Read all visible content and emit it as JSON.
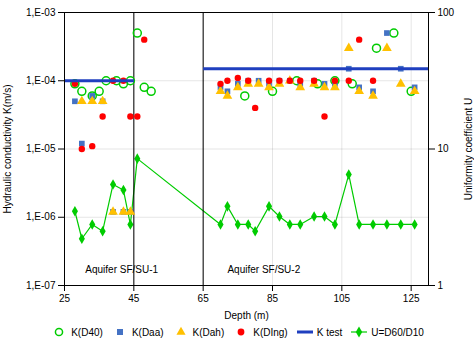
{
  "chart_data": {
    "type": "scatter",
    "xlabel": "Depth (m)",
    "ylabel": "Hydraulic conductivity K(m/s)",
    "y2label": "Uniformity coefficient U",
    "log": "y",
    "grid": true,
    "legend": "bottom",
    "xlim": [
      25,
      130
    ],
    "xticks": [
      25,
      45,
      65,
      85,
      105,
      125
    ],
    "ylim": [
      1e-07,
      0.001
    ],
    "yticks": [
      {
        "value": 1e-07,
        "label": "1,E-07"
      },
      {
        "value": 1e-06,
        "label": "1,E-06"
      },
      {
        "value": 1e-05,
        "label": "1,E-05"
      },
      {
        "value": 0.0001,
        "label": "1,E-04"
      },
      {
        "value": 0.001,
        "label": "1,E-03"
      }
    ],
    "y2lim": [
      1,
      100
    ],
    "y2ticks": [
      1,
      10,
      100
    ],
    "vlines": [
      45,
      65
    ],
    "annotations": [
      {
        "text": "Aquifer SF/SU-1",
        "x": 31,
        "y": 1.5e-07
      },
      {
        "text": "Aquifer SF/SU-2",
        "x": 72,
        "y": 1.5e-07
      }
    ],
    "series": [
      {
        "name": "K(D40)",
        "type": "scatter",
        "marker": "circle-open",
        "color": "#00CC00",
        "x": [
          28,
          30,
          33,
          35,
          37,
          40,
          42,
          44,
          46,
          48,
          50,
          77,
          85,
          92,
          98,
          103,
          108,
          115,
          120,
          125
        ],
        "values": [
          9e-05,
          7e-05,
          6e-05,
          7e-05,
          0.0001,
          0.0001,
          9e-05,
          0.0001,
          0.0005,
          8e-05,
          7e-05,
          6e-05,
          7e-05,
          0.0001,
          9e-05,
          0.0001,
          9e-05,
          0.0003,
          0.0005,
          7e-05
        ]
      },
      {
        "name": "K(Daa)",
        "type": "scatter",
        "marker": "square",
        "color": "#4472C4",
        "x": [
          28,
          30,
          33,
          36,
          39,
          42,
          44,
          70,
          72,
          75,
          78,
          81,
          84,
          87,
          90,
          93,
          97,
          100,
          103,
          107,
          110,
          114,
          118,
          122,
          126
        ],
        "values": [
          5e-05,
          1.2e-05,
          6e-05,
          5e-05,
          1.2e-06,
          1.2e-06,
          1.2e-06,
          8e-05,
          7e-05,
          9e-05,
          0.0001,
          0.0001,
          9e-05,
          0.0001,
          0.0001,
          9e-05,
          0.0001,
          9e-05,
          9e-05,
          0.00015,
          8e-05,
          7e-05,
          0.0005,
          0.00015,
          8e-05
        ]
      },
      {
        "name": "K(Dah)",
        "type": "scatter",
        "marker": "triangle",
        "color": "#FFC000",
        "x": [
          30,
          33,
          36,
          39,
          42,
          44,
          70,
          72,
          75,
          78,
          81,
          84,
          87,
          90,
          93,
          97,
          100,
          103,
          107,
          110,
          114,
          118,
          122,
          126
        ],
        "values": [
          5e-05,
          5e-05,
          5e-05,
          1.2e-06,
          1.2e-06,
          1.2e-06,
          7e-05,
          6e-05,
          8e-05,
          9e-05,
          9e-05,
          8e-05,
          9e-05,
          0.0001,
          8e-05,
          9e-05,
          8e-05,
          8e-05,
          0.0003,
          7e-05,
          6e-05,
          0.0003,
          9e-05,
          7e-05
        ]
      },
      {
        "name": "K(DIng)",
        "type": "scatter",
        "marker": "circle",
        "color": "#FF0000",
        "x": [
          28,
          30,
          33,
          36,
          39,
          42,
          44,
          46,
          48,
          70,
          72,
          75,
          78,
          80,
          84,
          87,
          90,
          93,
          97,
          100,
          103,
          107,
          110,
          114
        ],
        "values": [
          9e-05,
          1e-05,
          1.1e-05,
          3e-05,
          0.0001,
          0.0001,
          3e-05,
          3e-05,
          0.0004,
          9e-05,
          0.0001,
          0.00011,
          0.0001,
          4e-05,
          0.0001,
          0.0001,
          0.0001,
          0.0001,
          0.0001,
          3e-05,
          0.0001,
          0.0001,
          0.0004,
          0.0001
        ]
      },
      {
        "name": "K test",
        "type": "segments",
        "color": "#1F3FBF",
        "segments": [
          {
            "x": [
              25,
              45
            ],
            "y": [
              0.0001,
              0.0001
            ]
          },
          {
            "x": [
              65,
              130
            ],
            "y": [
              0.00015,
              0.00015
            ]
          }
        ]
      },
      {
        "name": "U=D60/D10",
        "type": "line",
        "marker": "diamond",
        "color": "#00CC00",
        "axis": "y2",
        "x": [
          28,
          30,
          33,
          36,
          39,
          42,
          44,
          46,
          70,
          72,
          75,
          78,
          80,
          84,
          87,
          90,
          93,
          97,
          100,
          103,
          107,
          110,
          114,
          118,
          122,
          126
        ],
        "values": [
          3.5,
          2.2,
          2.8,
          2.5,
          5.5,
          5.0,
          2.8,
          8.5,
          2.8,
          3.8,
          2.8,
          2.8,
          2.5,
          3.8,
          3.2,
          2.8,
          2.8,
          3.2,
          3.2,
          2.8,
          6.5,
          2.8,
          2.8,
          2.8,
          2.8,
          2.8
        ]
      }
    ]
  }
}
